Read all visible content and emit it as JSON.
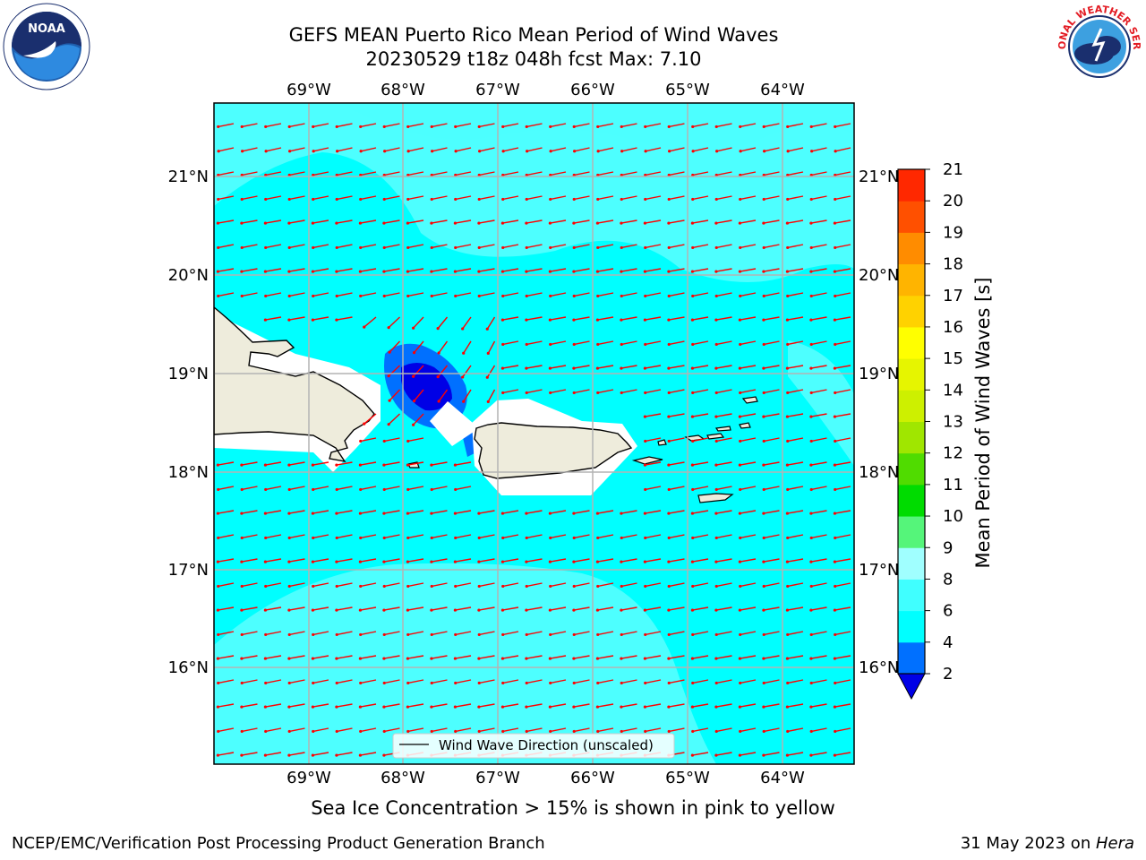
{
  "title": {
    "line1": "GEFS MEAN Puerto Rico Mean Period of Wind Waves",
    "line2": "20230529 t18z 048h fcst   Max: 7.10"
  },
  "axes": {
    "lon_labels": [
      "69°W",
      "68°W",
      "67°W",
      "66°W",
      "65°W",
      "64°W"
    ],
    "lat_labels": [
      "21°N",
      "20°N",
      "19°N",
      "18°N",
      "17°N",
      "16°N"
    ]
  },
  "legend": {
    "label": "Wind Wave Direction (unscaled)"
  },
  "colorbar": {
    "label": "Mean Period of Wind Waves [s]",
    "ticks": [
      "2",
      "4",
      "6",
      "8",
      "9",
      "10",
      "11",
      "12",
      "13",
      "14",
      "15",
      "16",
      "17",
      "18",
      "19",
      "20",
      "21"
    ],
    "colors": [
      "#0000e6",
      "#0070ff",
      "#00ffff",
      "#40ffff",
      "#a0ffff",
      "#55f57a",
      "#00dc00",
      "#50dc00",
      "#a0e600",
      "#cdf000",
      "#e6f500",
      "#ffff00",
      "#ffd200",
      "#ffb400",
      "#ff8c00",
      "#ff5000",
      "#ff2800",
      "#ff0000"
    ],
    "under_color": "#0000e6"
  },
  "colors": {
    "ocean_base": "#00ffff",
    "ocean_light": "#4dffff",
    "land": "#eeecdc",
    "arrow": "#ff0000",
    "grid": "#b4b4b4"
  },
  "logos": {
    "left": "NOAA",
    "right": "NATIONAL WEATHER SERVICE"
  },
  "caption": "Sea Ice Concentration > 15% is shown in pink to yellow",
  "footer": {
    "left": "NCEP/EMC/Verification Post Processing Product Generation Branch",
    "date": "31 May 2023 on ",
    "machine": "Hera"
  }
}
